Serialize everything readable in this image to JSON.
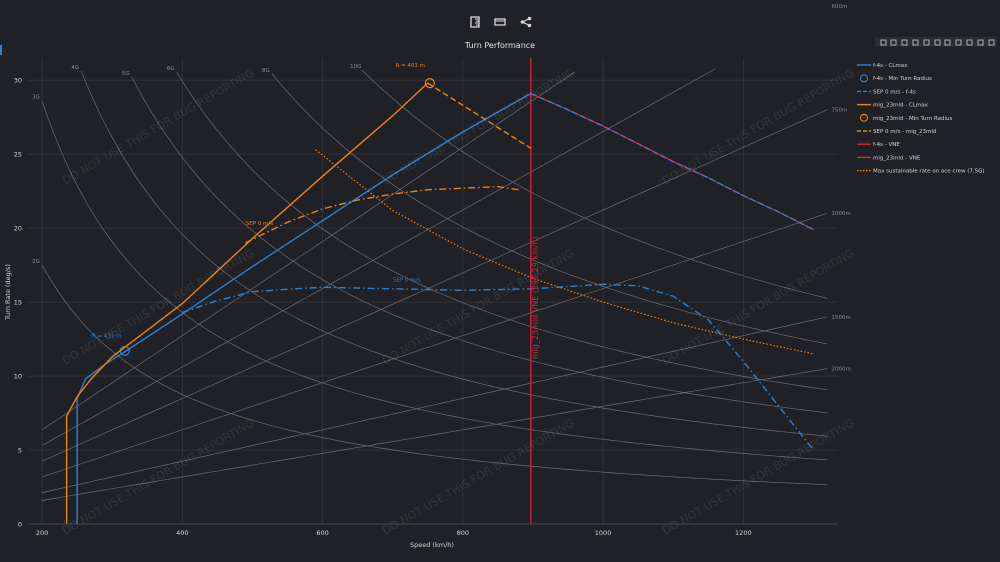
{
  "toolbar": {
    "buttons": [
      {
        "name": "ruler-icon"
      },
      {
        "name": "fullscreen-icon"
      },
      {
        "name": "share-icon"
      }
    ]
  },
  "modebar": {
    "icons": [
      "camera-icon",
      "zoom-icon",
      "pan-icon",
      "zoom-in-icon",
      "zoom-out-icon",
      "lasso-icon",
      "autoscale-icon",
      "reset-axes-icon",
      "spike-lines-icon",
      "hover-closest-icon",
      "hover-compare-icon"
    ]
  },
  "colors": {
    "background": "#1f2126",
    "grid": "#34363c",
    "f4s": "#2f80d1",
    "mig": "#f0820f",
    "vne": "#d0253a",
    "text": "#d6d6d6",
    "guide": "#6c6e72"
  },
  "watermark": "DO NOT USE THIS FOR BUG REPORTING",
  "chart_data": {
    "type": "line",
    "title": "Turn Performance",
    "xlabel": "Speed (km/h)",
    "ylabel": "Turn Rate (deg/s)",
    "xlim": [
      180,
      1335
    ],
    "ylim": [
      0,
      31.5
    ],
    "xticks": [
      200,
      400,
      600,
      800,
      1000,
      1200
    ],
    "yticks": [
      0,
      5,
      10,
      15,
      20,
      25,
      30
    ],
    "grid": true,
    "legend_position": "right",
    "g_lines": [
      {
        "label": "2G",
        "g": 2
      },
      {
        "label": "3G",
        "g": 3
      },
      {
        "label": "4G",
        "g": 4
      },
      {
        "label": "5G",
        "g": 5
      },
      {
        "label": "6G",
        "g": 6
      },
      {
        "label": "8G",
        "g": 8
      },
      {
        "label": "10G",
        "g": 10
      }
    ],
    "radius_lines": [
      {
        "label": "500m",
        "r": 500
      },
      {
        "label": "600m",
        "r": 600
      },
      {
        "label": "750m",
        "r": 750
      },
      {
        "label": "1000m",
        "r": 1000
      },
      {
        "label": "1500m",
        "r": 1500
      },
      {
        "label": "2000m",
        "r": 2000
      }
    ],
    "series": [
      {
        "name": "f-4s - CLmax",
        "color": "#2f80d1",
        "dash": "solid",
        "x": [
          250,
          250,
          262,
          290,
          320,
          400,
          500,
          600,
          700,
          800,
          897
        ],
        "y": [
          0,
          8.5,
          9.8,
          10.8,
          11.7,
          14.2,
          17.4,
          20.5,
          23.6,
          26.5,
          29.1
        ]
      },
      {
        "name": "f-4s - Min Turn Radius",
        "color": "#2f80d1",
        "marker": "circle",
        "x": [
          318
        ],
        "y": [
          11.7
        ]
      },
      {
        "name": "SEP 0 m/s - f-4s",
        "color": "#2f80d1",
        "dash": "dashdot",
        "x": [
          400,
          450,
          500,
          560,
          600,
          700,
          800,
          900,
          1000,
          1050,
          1100,
          1150,
          1200,
          1250,
          1300
        ],
        "y": [
          14.3,
          15.1,
          15.7,
          15.9,
          16.0,
          15.9,
          15.8,
          15.9,
          16.2,
          16.1,
          15.4,
          13.8,
          11.0,
          8.0,
          5.0
        ]
      },
      {
        "name": "mig_23mld - CLmax",
        "color": "#f0820f",
        "dash": "solid",
        "x": [
          235,
          235,
          250,
          270,
          300,
          400,
          500,
          600,
          700,
          750
        ],
        "y": [
          0,
          7.3,
          8.6,
          9.8,
          11.3,
          14.9,
          19.3,
          23.5,
          27.6,
          29.8
        ]
      },
      {
        "name": "mig_23mld - Min Turn Radius",
        "color": "#f0820f",
        "marker": "circle",
        "x": [
          753
        ],
        "y": [
          29.8
        ]
      },
      {
        "name": "SEP 0 m/s - mig_23mld",
        "color": "#f0820f",
        "dash": "dashdot",
        "x": [
          490,
          550,
          600,
          650,
          700,
          750,
          800,
          850,
          880
        ],
        "y": [
          19.0,
          20.4,
          21.3,
          21.9,
          22.3,
          22.6,
          22.7,
          22.8,
          22.6
        ]
      },
      {
        "name": "f-4s - VNE",
        "color": "#d0253a",
        "dash": "solid",
        "x": [
          897,
          950,
          1000,
          1050,
          1100,
          1150,
          1200,
          1250,
          1300
        ],
        "y": [
          29.1,
          28.0,
          26.9,
          25.7,
          24.5,
          23.4,
          22.2,
          21.1,
          19.9
        ]
      },
      {
        "name": "mig_23mld - VNE",
        "color": "#d0253a",
        "dash": "solid",
        "x": [
          897,
          897
        ],
        "y": [
          0,
          31.5
        ]
      },
      {
        "name": "Max sustainable rate on ace crew (7.5G)",
        "color": "#f0820f",
        "dash": "dotted",
        "x": [
          590,
          700,
          800,
          900,
          1000,
          1100,
          1200,
          1300
        ],
        "y": [
          25.3,
          21.2,
          18.6,
          16.6,
          15.0,
          13.6,
          12.5,
          11.5
        ]
      }
    ],
    "extra_lines": [
      {
        "of": "mig_23mld",
        "color": "#f0820f",
        "dash": "dashed",
        "x": [
          750,
          800,
          850,
          897
        ],
        "y": [
          29.8,
          28.3,
          26.8,
          25.4
        ]
      },
      {
        "of": "f-4s",
        "color": "#2f80d1",
        "dash": "dashed",
        "x": [
          897,
          950,
          1000,
          1050,
          1100,
          1150,
          1200,
          1250,
          1300
        ],
        "y": [
          29.1,
          28.0,
          26.9,
          25.7,
          24.5,
          23.4,
          22.2,
          21.1,
          19.9
        ]
      }
    ],
    "annotations": [
      {
        "text": "R = 401 m",
        "color": "#f0820f",
        "x": 725,
        "y": 30.9
      },
      {
        "text": "R = 431 m",
        "color": "#2f80d1",
        "x": 292,
        "y": 12.6
      },
      {
        "text": "SEP 0 m/s",
        "color": "#2f80d1",
        "x": 720,
        "y": 16.4
      },
      {
        "text": "SEP 0 m/s",
        "color": "#f0820f",
        "x": 510,
        "y": 20.2
      },
      {
        "text": "mig_23mld VNE (896.29 km/h)",
        "color": "#d0253a",
        "x": 907,
        "y": 15.3,
        "rotate": -90
      }
    ]
  }
}
